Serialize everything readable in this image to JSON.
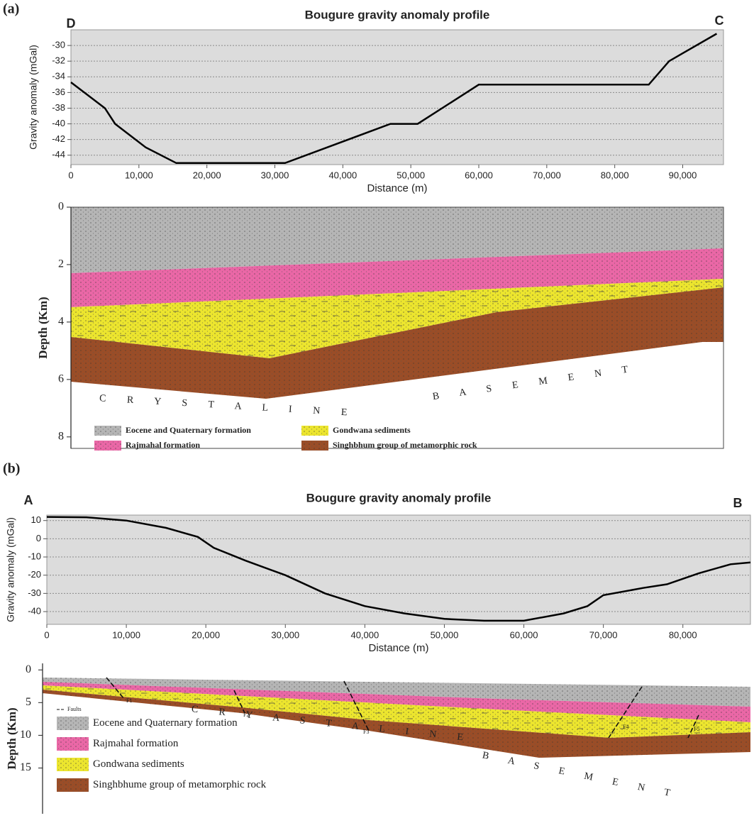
{
  "chart_data": [
    {
      "type": "line",
      "panel_label": "(a)",
      "title": "Bougure gravity anomaly profile",
      "x_label": "Distance (m)",
      "y_label": "Gravity anomaly (mGal)",
      "start_label": "D",
      "end_label": "C",
      "x": [
        0,
        5000,
        6500,
        11000,
        15500,
        31500,
        47000,
        51000,
        60000,
        85000,
        88000,
        90000,
        95000
      ],
      "values": [
        -34.7,
        -38,
        -40,
        -43,
        -45,
        -45,
        -40,
        -40,
        -35,
        -35,
        -32,
        -31,
        -28.5
      ],
      "color": "#000000",
      "xlim": [
        0,
        96000
      ],
      "ylim": [
        -45.2,
        -28
      ],
      "xticks": [
        0,
        {
          "value": 10000,
          "label": "10,000"
        },
        {
          "value": 20000,
          "label": "20,000"
        },
        {
          "value": 30000,
          "label": "30,000"
        },
        {
          "value": 40000,
          "label": "40,000"
        },
        {
          "value": 50000,
          "label": "50,000"
        },
        {
          "value": 60000,
          "label": "60,000"
        },
        {
          "value": 70000,
          "label": "70,000"
        },
        {
          "value": 80000,
          "label": "80,000"
        },
        {
          "value": 90000,
          "label": "90,000"
        }
      ],
      "yticks": [
        -30,
        -32,
        -34,
        -36,
        -38,
        -40,
        -42,
        -44
      ],
      "grid": true
    },
    {
      "type": "cross-section",
      "y_label": "Depth (Km)",
      "ylim": [
        0,
        8.4
      ],
      "yticks": [
        0,
        2,
        4,
        6,
        8
      ],
      "layers": [
        {
          "name": "Eocene and Quaternary formation",
          "color": "#b5b5b5"
        },
        {
          "name": "Rajmahal formation",
          "color": "#ea67a6"
        },
        {
          "name": "Gondwana sediments",
          "color": "#ece52e"
        },
        {
          "name": "Singhbhum group of metamorphic rock",
          "color": "#9a4d27"
        }
      ],
      "annotations": [
        "C R Y S T A L I N E",
        "B A S E M E N T"
      ]
    },
    {
      "type": "line",
      "panel_label": "(b)",
      "title": "Bougure gravity anomaly profile",
      "x_label": "Distance (m)",
      "y_label": "Gravity anomaly (mGal)",
      "start_label": "A",
      "end_label": "B",
      "x": [
        0,
        5000,
        10000,
        15000,
        19000,
        21000,
        25000,
        30000,
        35000,
        40000,
        45000,
        50000,
        55000,
        60000,
        65000,
        68000,
        70000,
        75000,
        78000,
        82000,
        86000,
        88500
      ],
      "values": [
        12,
        11.8,
        10,
        6,
        1,
        -5,
        -12,
        -20,
        -30,
        -37,
        -41,
        -44,
        -45,
        -45,
        -41,
        -37,
        -31,
        -27,
        -25,
        -19,
        -14,
        -13
      ],
      "color": "#000000",
      "xlim": [
        0,
        88500
      ],
      "ylim": [
        -47,
        13
      ],
      "xticks": [
        0,
        {
          "value": 10000,
          "label": "10,000"
        },
        {
          "value": 20000,
          "label": "20,000"
        },
        {
          "value": 30000,
          "label": "30,000"
        },
        {
          "value": 40000,
          "label": "40,000"
        },
        {
          "value": 50000,
          "label": "50,000"
        },
        {
          "value": 60000,
          "label": "60,000"
        },
        {
          "value": 70000,
          "label": "70,000"
        },
        {
          "value": 80000,
          "label": "80,000"
        }
      ],
      "yticks": [
        10,
        0,
        -10,
        -20,
        -30,
        -40
      ],
      "grid": true
    },
    {
      "type": "cross-section",
      "y_label": "Depth (Km)",
      "ylim": [
        -1,
        22
      ],
      "yticks": [
        0,
        5,
        10,
        15
      ],
      "layers": [
        {
          "name": "Eocene and Quaternary formation",
          "color": "#b5b5b5"
        },
        {
          "name": "Rajmahal formation",
          "color": "#ea67a6"
        },
        {
          "name": "Gondwana sediments",
          "color": "#ece52e"
        },
        {
          "name": "Singhbhume group of metamorphic rock",
          "color": "#9a4d27"
        }
      ],
      "faults_label": "Faults",
      "fault_labels": [
        "F1",
        "F2",
        "F3",
        "F4",
        "F5"
      ],
      "annotations": [
        "C R Y A S T A L I N E",
        "B A S E M E N T"
      ]
    }
  ]
}
